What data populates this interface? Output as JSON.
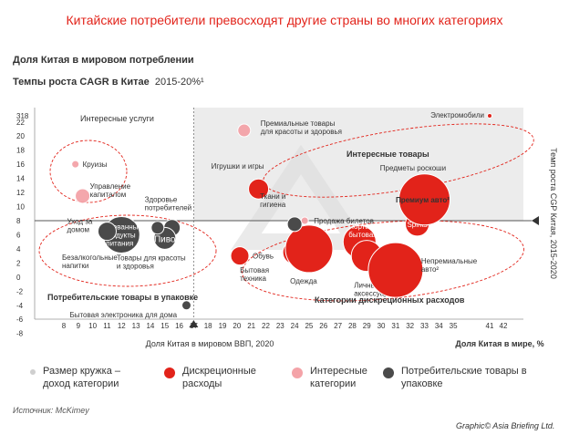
{
  "title": "Китайские потребители превосходят другие страны во многих категориях",
  "subtitle_share": "Доля Китая в мировом потреблении",
  "subtitle_cagr_bold": "Темпы роста CAGR в Китае",
  "subtitle_cagr_period": "2015-20%¹",
  "source": "Источник: McKimey",
  "credit": "Graphic© Asia Briefing Ltd.",
  "colors": {
    "discretionary": "#e2231a",
    "interesting": "#f4a3a8",
    "packaged": "#4a4a4a",
    "size_hint": "#cfcfcf",
    "quadrant_bg": "#ececec",
    "title": "#e2231a"
  },
  "legend": [
    {
      "label": "Размер кружка – доход категории",
      "color": "#cfcfcf"
    },
    {
      "label": "Дискреционные расходы",
      "color": "#e2231a"
    },
    {
      "label": "Интересные категории",
      "color": "#f4a3a8"
    },
    {
      "label": "Потребительские товары в упаковке",
      "color": "#4a4a4a"
    }
  ],
  "chart_data": {
    "type": "scatter",
    "xlabel": "Доля Китая в мире, %",
    "ylabel": "Темп роста CGP Китая, 2015-2020",
    "x_reference_label": "Доля Китая в мировом ВВП, 2020",
    "x_reference_value": 17,
    "y_reference_value": 8,
    "x_ticks": [
      "8",
      "9",
      "10",
      "11",
      "12",
      "13",
      "14",
      "15",
      "16",
      "17",
      "18",
      "19",
      "20",
      "21",
      "22",
      "23",
      "24",
      "25",
      "26",
      "27",
      "28",
      "29",
      "30",
      "31",
      "32",
      "33",
      "34",
      "35",
      "41",
      "42"
    ],
    "y_ticks": [
      "318",
      "22",
      "20",
      "18",
      "16",
      "14",
      "12",
      "10",
      "8",
      "6",
      "4",
      "2",
      "0",
      "-2",
      "-4",
      "-6",
      "-8"
    ],
    "groups": [
      {
        "label": "Интересные услуги"
      },
      {
        "label": "Интересные товары"
      },
      {
        "label": "Потребительские товары в упаковке"
      },
      {
        "label": "Категории дискреционных расходов"
      }
    ],
    "series": [
      {
        "name": "Дискреционные расходы",
        "points": [
          {
            "label": "Электромобили",
            "x": 41,
            "y": 318
          },
          {
            "label": "Игрушки и игры",
            "x": 21.5,
            "y": 12.5
          },
          {
            "label": "Обувь",
            "x": 20.2,
            "y": 3
          },
          {
            "label": "Бытовая техника",
            "x": 24,
            "y": 3.5
          },
          {
            "label": "Одежда",
            "x": 25,
            "y": 4
          },
          {
            "label": "Портативная бытовая электроника",
            "x": 28.5,
            "y": 5
          },
          {
            "label": "Личные аксессуары",
            "x": 29,
            "y": 3
          },
          {
            "label": "Непремиальные авто²",
            "x": 31,
            "y": 1
          },
          {
            "label": "Spirits",
            "x": 32.5,
            "y": 7.5
          },
          {
            "label": "Премиум авто²",
            "x": 33,
            "y": 11
          },
          {
            "label": "Предметы роскоши",
            "x": 31.5,
            "y": 11
          }
        ]
      },
      {
        "name": "Интересные категории",
        "points": [
          {
            "label": "Премиальные товары для красоты и здоровья",
            "x": 20.5,
            "y": 20.8
          },
          {
            "label": "Круизы",
            "x": 8.8,
            "y": 16
          },
          {
            "label": "Управление капиталом",
            "x": 9.3,
            "y": 11.5
          },
          {
            "label": "Продажа билетов",
            "x": 24.7,
            "y": 8
          }
        ]
      },
      {
        "name": "Потребительские товары в упаковке",
        "points": [
          {
            "label": "Упакованные продукты питания",
            "x": 12,
            "y": 6
          },
          {
            "label": "Безалкогольные напитки",
            "x": 11,
            "y": 6.5
          },
          {
            "label": "Здоровье потребителей",
            "x": 15.5,
            "y": 7
          },
          {
            "label": "Пиво",
            "x": 15,
            "y": 5.5
          },
          {
            "label": "Товары для красоты и здоровья",
            "x": 14.5,
            "y": 7
          },
          {
            "label": "Ткани и гигиена",
            "x": 24,
            "y": 7.5
          },
          {
            "label": "Бытовая электроника для дома",
            "x": 16.5,
            "y": -4
          }
        ]
      }
    ]
  }
}
